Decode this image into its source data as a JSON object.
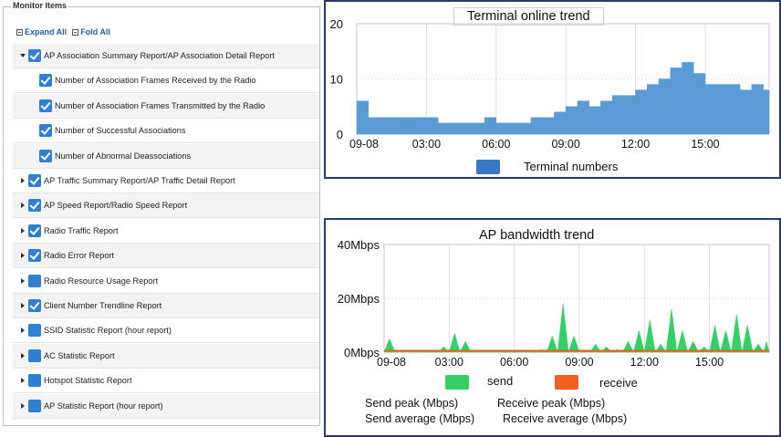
{
  "monitor_panel": {
    "title": "Monitor Items",
    "expand_all": "Expand All",
    "fold_all": "Fold All",
    "items": [
      {
        "label": "AP Association Summary Report/AP Association Detail Report",
        "checked": true,
        "level": 0,
        "expanded": true
      },
      {
        "label": "Number of Association Frames Received by the Radio",
        "checked": true,
        "level": 1
      },
      {
        "label": "Number of Association Frames Transmitted by the Radio",
        "checked": true,
        "level": 1
      },
      {
        "label": "Number of Successful Associations",
        "checked": true,
        "level": 1
      },
      {
        "label": "Number of Abnormal Deassociations",
        "checked": true,
        "level": 1
      },
      {
        "label": "AP Traffic Summary Report/AP Traffic Detail Report",
        "checked": true,
        "level": 0
      },
      {
        "label": "AP Speed Report/Radio Speed Report",
        "checked": true,
        "level": 0
      },
      {
        "label": "Radio Traffic Report",
        "checked": true,
        "level": 0
      },
      {
        "label": "Radio Error Report",
        "checked": true,
        "level": 0
      },
      {
        "label": "Radio Resource Usage Report",
        "checked": false,
        "level": 0
      },
      {
        "label": "Client Number Trendline Report",
        "checked": true,
        "level": 0
      },
      {
        "label": "SSID Statistic Report (hour report)",
        "checked": false,
        "level": 0
      },
      {
        "label": "AC Statistic Report",
        "checked": false,
        "level": 0
      },
      {
        "label": "Hotspot Statistic Report",
        "checked": false,
        "level": 0
      },
      {
        "label": "AP Statistic Report (hour report)",
        "checked": false,
        "level": 0
      }
    ]
  },
  "terminal_chart": {
    "title": "Terminal online trend",
    "legend_label": "Terminal numbers",
    "color": "#5b9bd5",
    "legend_color": "#3b78c3",
    "y_ticks": [
      "20",
      "10",
      "0"
    ],
    "x_ticks": [
      "09-08",
      "03:00",
      "06:00",
      "09:00",
      "12:00",
      "15:00"
    ]
  },
  "bandwidth_chart": {
    "title": "AP bandwidth trend",
    "y_ticks": [
      "40Mbps",
      "20Mbps",
      "0Mbps"
    ],
    "x_ticks": [
      "09-08",
      "03:00",
      "06:00",
      "09:00",
      "12:00",
      "15:00"
    ],
    "send_label": "send",
    "receive_label": "receive",
    "send_color": "#33d066",
    "receive_color": "#f25f1e",
    "send_peak": "Send peak   (Mbps)",
    "receive_peak": "Receive peak   (Mbps)",
    "send_average": "Send average (Mbps)",
    "receive_average": "Receive average (Mbps)"
  },
  "chart_data": [
    {
      "type": "area",
      "title": "Terminal online trend",
      "series": [
        {
          "name": "Terminal numbers",
          "x": [
            "00:00",
            "00:30",
            "01:00",
            "01:30",
            "02:00",
            "02:30",
            "03:00",
            "03:30",
            "04:00",
            "04:30",
            "05:00",
            "05:30",
            "06:00",
            "06:30",
            "07:00",
            "07:30",
            "08:00",
            "08:30",
            "09:00",
            "09:30",
            "10:00",
            "10:30",
            "11:00",
            "11:30",
            "12:00",
            "12:30",
            "13:00",
            "13:30",
            "14:00",
            "14:30",
            "15:00",
            "15:30",
            "16:00",
            "16:30",
            "17:00",
            "17:30"
          ],
          "values": [
            6,
            3,
            3,
            3,
            3,
            3,
            3,
            2,
            2,
            2,
            2,
            3,
            2,
            2,
            2,
            3,
            3,
            4,
            5,
            6,
            5,
            6,
            7,
            7,
            8,
            9,
            10,
            12,
            13,
            11,
            9,
            9,
            9,
            8,
            9,
            8
          ]
        }
      ],
      "ylim": [
        0,
        20
      ]
    },
    {
      "type": "area",
      "title": "AP bandwidth trend",
      "series": [
        {
          "name": "send",
          "x": [
            "00:00",
            "00:30",
            "01:00",
            "01:30",
            "02:00",
            "02:30",
            "03:00",
            "03:30",
            "04:00",
            "04:30",
            "05:00",
            "05:30",
            "06:00",
            "06:30",
            "07:00",
            "07:30",
            "08:00",
            "08:30",
            "09:00",
            "09:30",
            "10:00",
            "10:30",
            "11:00",
            "11:30",
            "12:00",
            "12:30",
            "13:00",
            "13:30",
            "14:00",
            "14:30",
            "15:00",
            "15:30",
            "16:00",
            "16:30",
            "17:00",
            "17:30"
          ],
          "values": [
            5,
            0,
            0,
            0,
            0,
            2,
            7,
            4,
            0,
            0,
            0,
            0,
            0,
            0,
            1,
            6,
            18,
            6,
            0,
            3,
            2,
            1,
            4,
            8,
            12,
            3,
            16,
            8,
            4,
            2,
            10,
            8,
            14,
            10,
            3,
            4
          ]
        },
        {
          "name": "receive",
          "x": [
            "00:00",
            "17:30"
          ],
          "values": [
            0.5,
            0.5
          ]
        }
      ],
      "ylim": [
        0,
        40
      ]
    }
  ]
}
